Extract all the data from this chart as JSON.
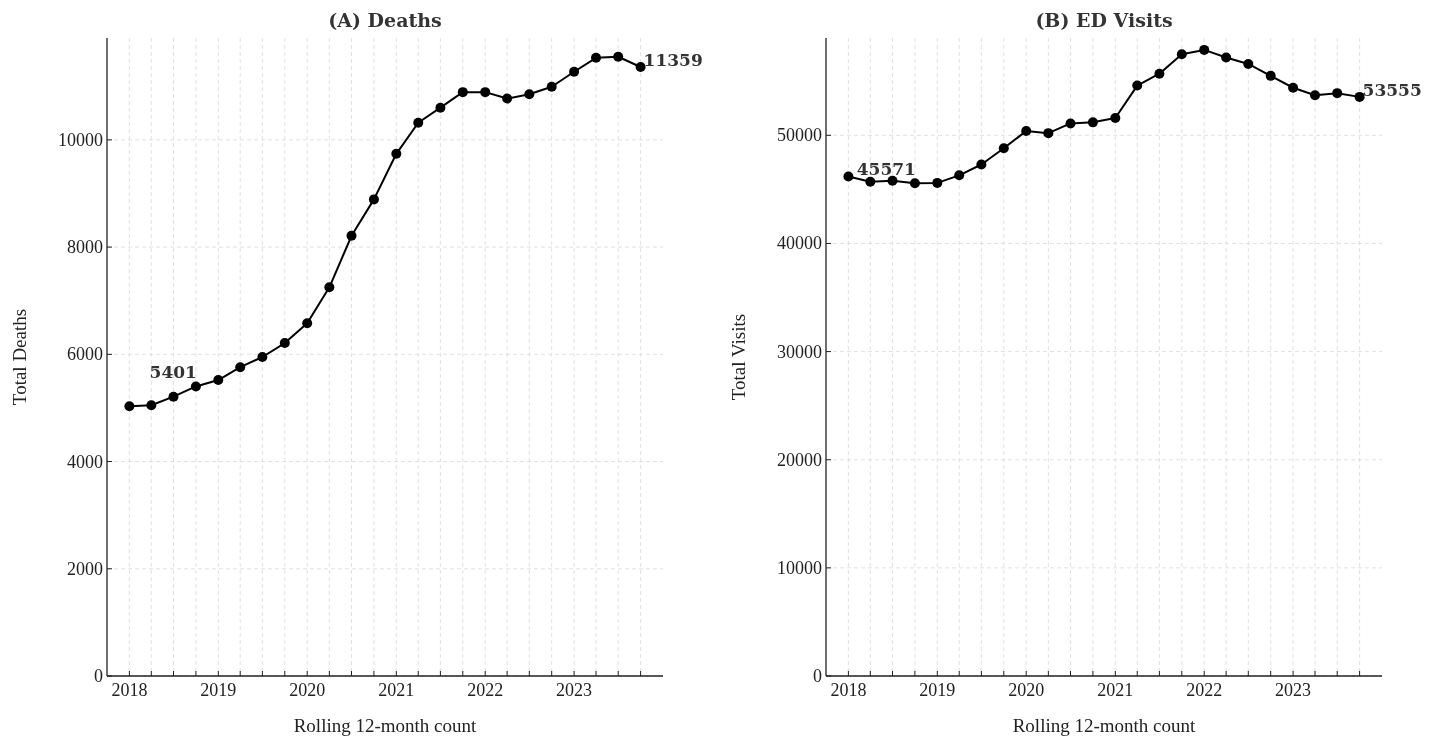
{
  "chart_data": [
    {
      "type": "line",
      "title": "(A) Deaths",
      "xlabel": "Rolling 12-month count",
      "ylabel": "Total Deaths",
      "x": [
        "2018-01",
        "2018-04",
        "2018-07",
        "2018-10",
        "2019-01",
        "2019-04",
        "2019-07",
        "2019-10",
        "2020-01",
        "2020-04",
        "2020-07",
        "2020-10",
        "2021-01",
        "2021-04",
        "2021-07",
        "2021-10",
        "2022-01",
        "2022-04",
        "2022-07",
        "2022-10",
        "2023-01",
        "2023-04",
        "2023-07",
        "2023-10"
      ],
      "series": [
        {
          "color": "#000000",
          "values": [
            5030,
            5050,
            5210,
            5401,
            5520,
            5760,
            5950,
            6210,
            6580,
            7250,
            8210,
            8890,
            9740,
            10320,
            10600,
            10890,
            10890,
            10770,
            10850,
            10990,
            11270,
            11530,
            11550,
            11359
          ]
        }
      ],
      "xlim": [
        "2017-10",
        "2024-01"
      ],
      "ylim": [
        0,
        11900
      ],
      "yticks": [
        0,
        2000,
        4000,
        6000,
        8000,
        10000
      ],
      "xticks": [
        {
          "value": "2018",
          "label": "2018"
        },
        {
          "value": "2018-04",
          "label": null
        },
        {
          "value": "2018-07",
          "label": null
        },
        {
          "value": "2018-10",
          "label": null
        },
        {
          "value": "2019",
          "label": "2019"
        },
        {
          "value": "2019-04",
          "label": null
        },
        {
          "value": "2019-07",
          "label": null
        },
        {
          "value": "2019-10",
          "label": null
        },
        {
          "value": "2020",
          "label": "2020"
        },
        {
          "value": "2020-04",
          "label": null
        },
        {
          "value": "2020-07",
          "label": null
        },
        {
          "value": "2020-10",
          "label": null
        },
        {
          "value": "2021",
          "label": "2021"
        },
        {
          "value": "2021-04",
          "label": null
        },
        {
          "value": "2021-07",
          "label": null
        },
        {
          "value": "2021-10",
          "label": null
        },
        {
          "value": "2022",
          "label": "2022"
        },
        {
          "value": "2022-04",
          "label": null
        },
        {
          "value": "2022-07",
          "label": null
        },
        {
          "value": "2022-10",
          "label": null
        },
        {
          "value": "2023",
          "label": "2023"
        },
        {
          "value": "2023-04",
          "label": null
        },
        {
          "value": "2023-07",
          "label": null
        },
        {
          "value": "2023-10",
          "label": null
        }
      ],
      "annotations": [
        {
          "text": "5401",
          "x": "2018-10",
          "y": 5401
        },
        {
          "text": "11359",
          "x": "2023-10",
          "y": 11359
        }
      ],
      "grid": true,
      "marker": "circle",
      "line_style": "solid"
    },
    {
      "type": "line",
      "title": "(B) ED Visits",
      "xlabel": "Rolling 12-month count",
      "ylabel": "Total Visits",
      "x": [
        "2018-01",
        "2018-04",
        "2018-07",
        "2018-10",
        "2019-01",
        "2019-04",
        "2019-07",
        "2019-10",
        "2020-01",
        "2020-04",
        "2020-07",
        "2020-10",
        "2021-01",
        "2021-04",
        "2021-07",
        "2021-10",
        "2022-01",
        "2022-04",
        "2022-07",
        "2022-10",
        "2023-01",
        "2023-04",
        "2023-07",
        "2023-10"
      ],
      "series": [
        {
          "color": "#000000",
          "values": [
            46200,
            45700,
            45800,
            45571,
            45600,
            46300,
            47300,
            48800,
            50400,
            50200,
            51100,
            51200,
            51600,
            54600,
            55700,
            57500,
            57900,
            57200,
            56600,
            55500,
            54400,
            53700,
            53900,
            53555
          ]
        }
      ],
      "xlim": [
        "2017-10",
        "2024-01"
      ],
      "ylim": [
        0,
        59000
      ],
      "yticks": [
        0,
        10000,
        20000,
        30000,
        40000,
        50000
      ],
      "xticks": [
        {
          "value": "2018",
          "label": "2018"
        },
        {
          "value": "2018-04",
          "label": null
        },
        {
          "value": "2018-07",
          "label": null
        },
        {
          "value": "2018-10",
          "label": null
        },
        {
          "value": "2019",
          "label": "2019"
        },
        {
          "value": "2019-04",
          "label": null
        },
        {
          "value": "2019-07",
          "label": null
        },
        {
          "value": "2019-10",
          "label": null
        },
        {
          "value": "2020",
          "label": "2020"
        },
        {
          "value": "2020-04",
          "label": null
        },
        {
          "value": "2020-07",
          "label": null
        },
        {
          "value": "2020-10",
          "label": null
        },
        {
          "value": "2021",
          "label": "2021"
        },
        {
          "value": "2021-04",
          "label": null
        },
        {
          "value": "2021-07",
          "label": null
        },
        {
          "value": "2021-10",
          "label": null
        },
        {
          "value": "2022",
          "label": "2022"
        },
        {
          "value": "2022-04",
          "label": null
        },
        {
          "value": "2022-07",
          "label": null
        },
        {
          "value": "2022-10",
          "label": null
        },
        {
          "value": "2023",
          "label": "2023"
        },
        {
          "value": "2023-04",
          "label": null
        },
        {
          "value": "2023-07",
          "label": null
        },
        {
          "value": "2023-10",
          "label": null
        }
      ],
      "annotations": [
        {
          "text": "45571",
          "x": "2018-10",
          "y": 45571
        },
        {
          "text": "53555",
          "x": "2023-10",
          "y": 53555
        }
      ],
      "grid": true,
      "marker": "circle",
      "line_style": "solid"
    }
  ]
}
